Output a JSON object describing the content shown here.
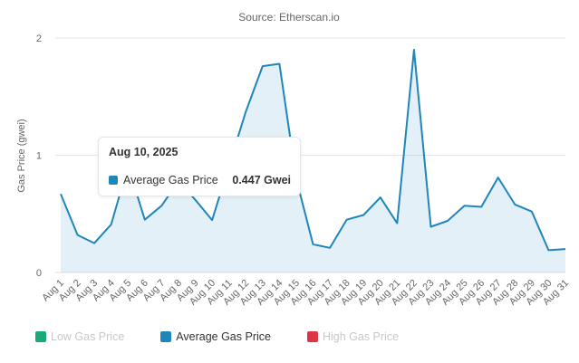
{
  "chart_data": {
    "type": "line",
    "subtitle": "Source: Etherscan.io",
    "ylabel": "Gas Price (gwei)",
    "ylim": [
      0,
      2
    ],
    "yticks": [
      "0",
      "1",
      "2"
    ],
    "grid": true,
    "categories": [
      "Aug 1",
      "Aug 2",
      "Aug 3",
      "Aug 4",
      "Aug 5",
      "Aug 6",
      "Aug 7",
      "Aug 8",
      "Aug 9",
      "Aug 10",
      "Aug 11",
      "Aug 12",
      "Aug 13",
      "Aug 14",
      "Aug 15",
      "Aug 16",
      "Aug 17",
      "Aug 18",
      "Aug 19",
      "Aug 20",
      "Aug 21",
      "Aug 22",
      "Aug 23",
      "Aug 24",
      "Aug 25",
      "Aug 26",
      "Aug 27",
      "Aug 28",
      "Aug 29",
      "Aug 30",
      "Aug 31"
    ],
    "series": [
      {
        "name": "Average Gas Price",
        "color": "#1f86bc",
        "values": [
          0.67,
          0.32,
          0.25,
          0.41,
          0.91,
          0.45,
          0.57,
          0.78,
          0.62,
          0.447,
          0.91,
          1.37,
          1.76,
          1.78,
          0.8,
          0.24,
          0.21,
          0.45,
          0.49,
          0.64,
          0.42,
          1.9,
          0.39,
          0.44,
          0.57,
          0.56,
          0.81,
          0.58,
          0.52,
          0.19,
          0.2
        ]
      }
    ],
    "legend": {
      "placement": "bottom-left",
      "items": [
        {
          "label": "Low Gas Price",
          "color": "#1aaa7a",
          "visible": false
        },
        {
          "label": "Average Gas Price",
          "color": "#1f86bc",
          "visible": true
        },
        {
          "label": "High Gas Price",
          "color": "#dc3545",
          "visible": false
        }
      ]
    },
    "tooltip": {
      "date": "Aug 10, 2025",
      "series": "Average Gas Price",
      "value": "0.447 Gwei",
      "color": "#1f86bc"
    }
  }
}
